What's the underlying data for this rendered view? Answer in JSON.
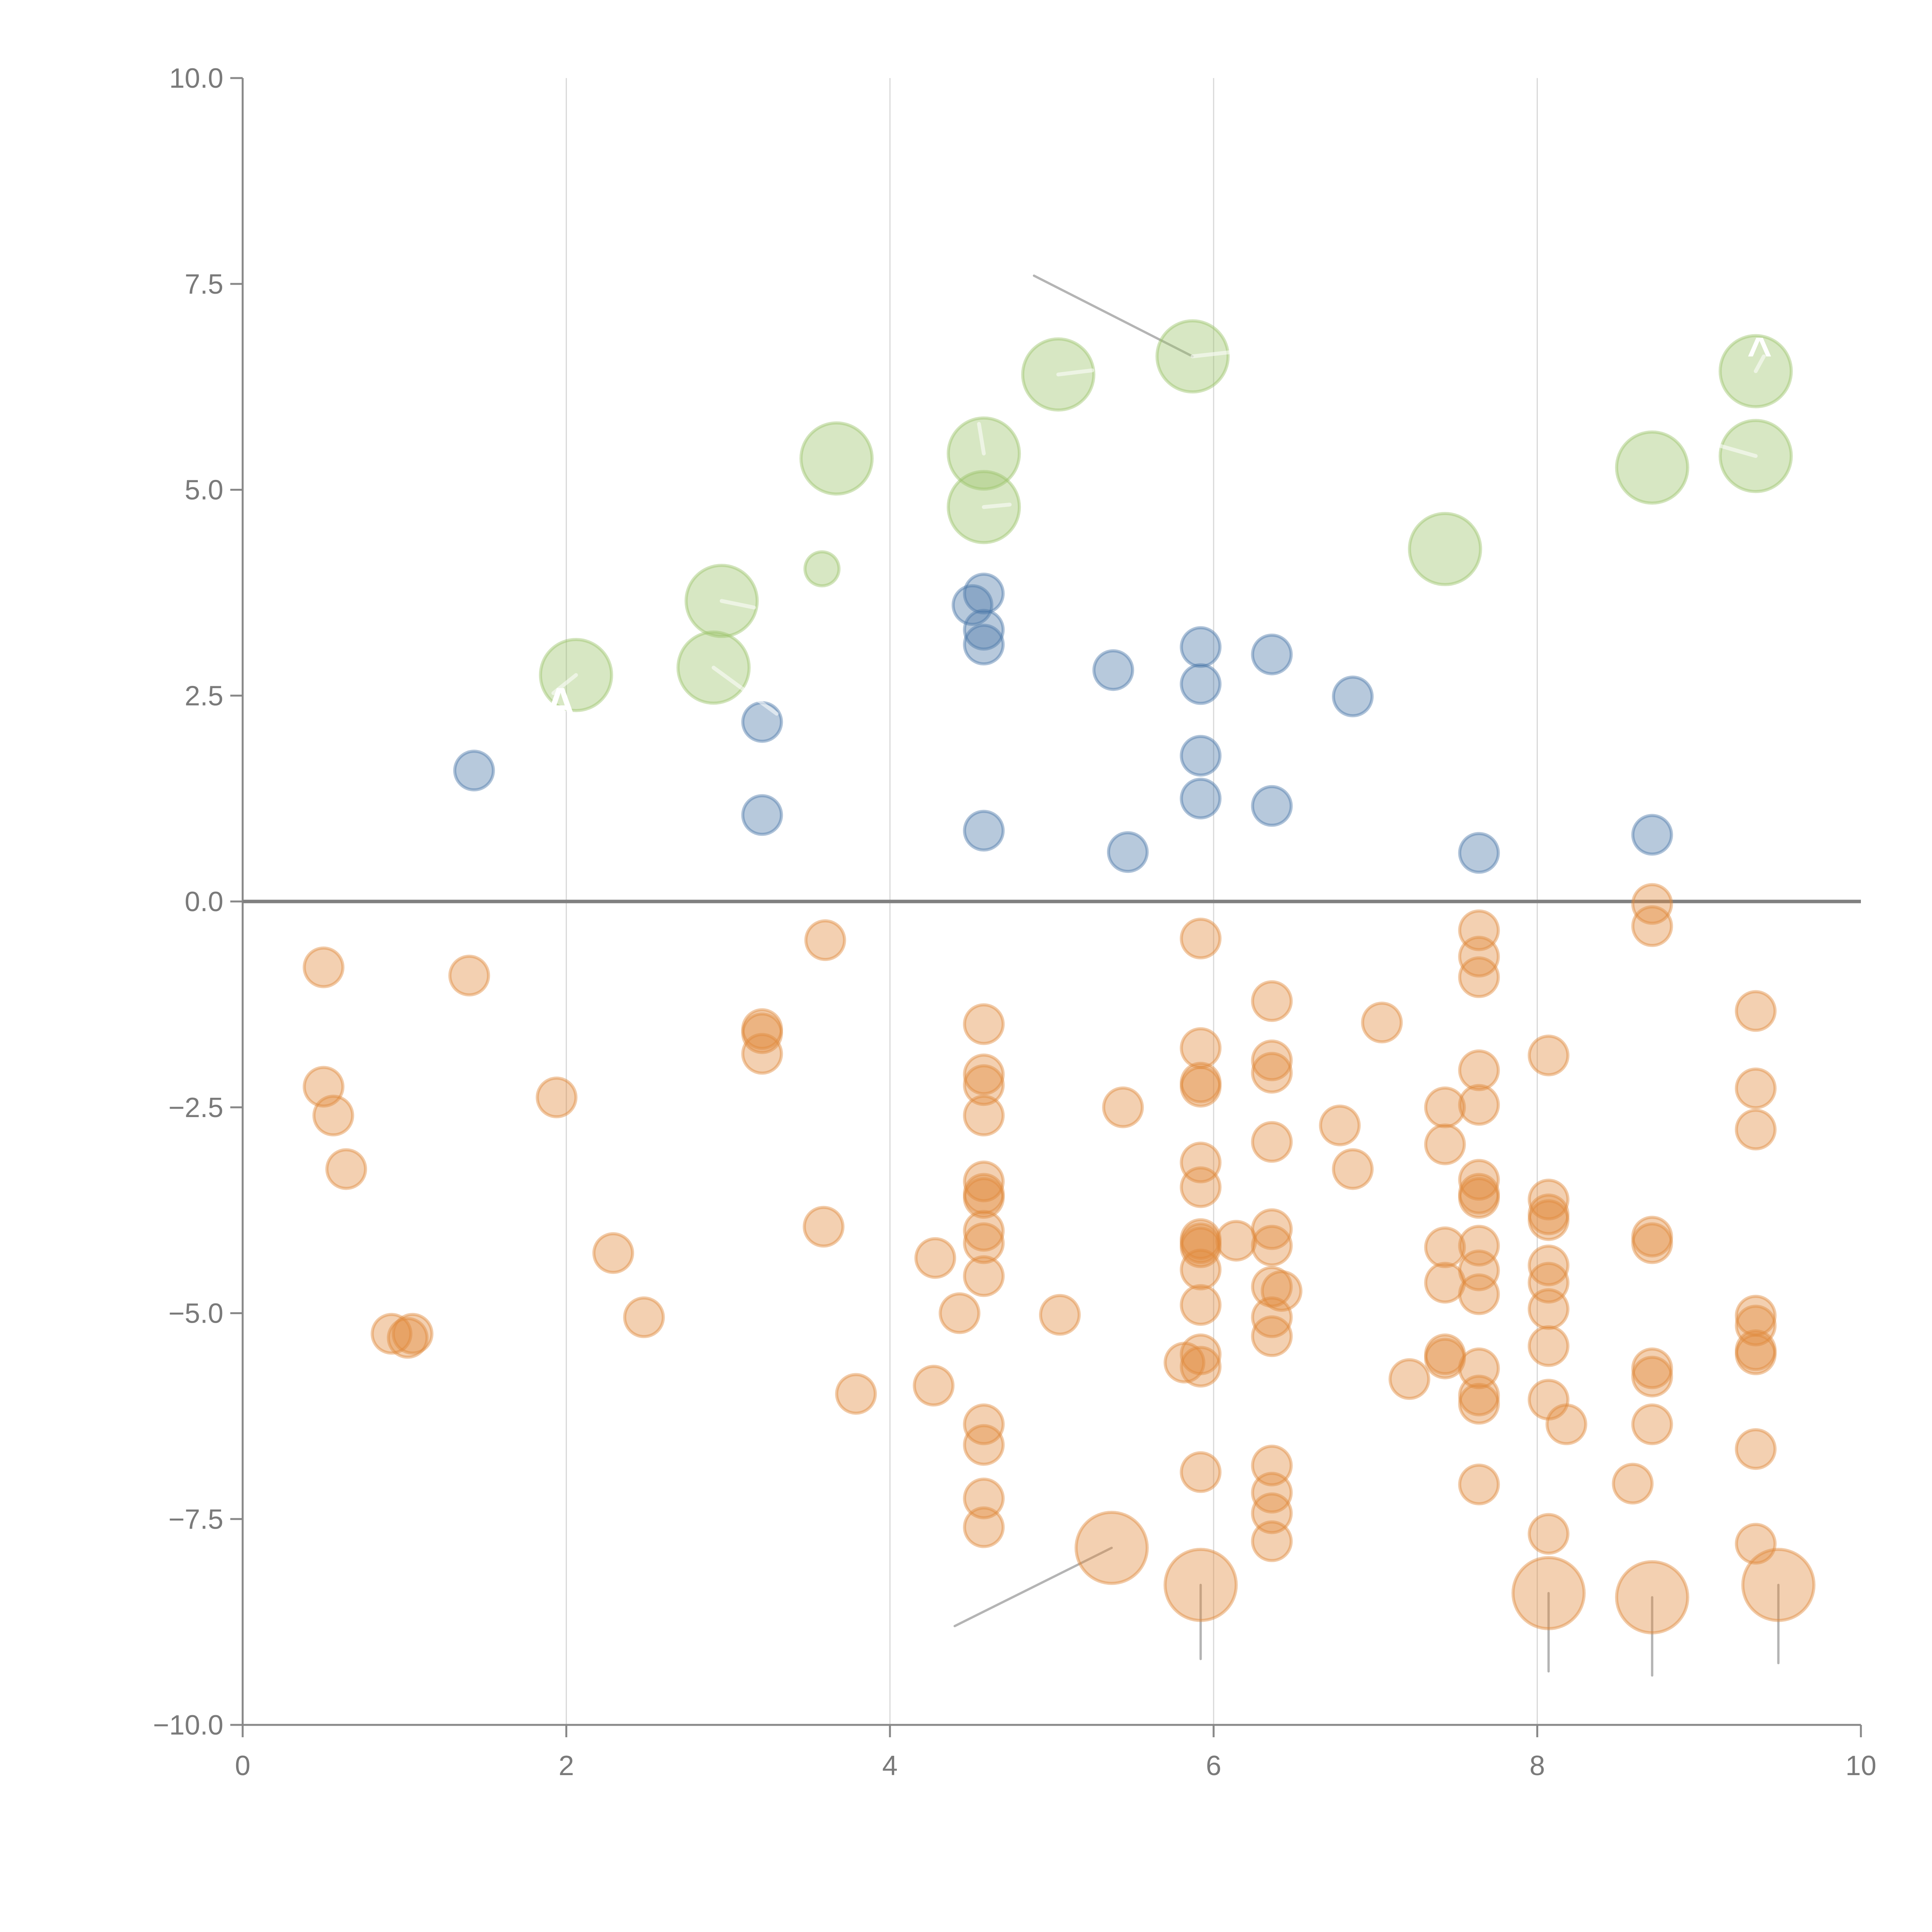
{
  "chart_data": {
    "type": "scatter",
    "title": "",
    "xlabel": "",
    "ylabel": "",
    "xlim": [
      0,
      10
    ],
    "ylim": [
      -10,
      10
    ],
    "x_ticks": [
      "0",
      "2",
      "4",
      "6",
      "8",
      "10"
    ],
    "x_tick_values": [
      0,
      2,
      4,
      6,
      8,
      10
    ],
    "y_ticks": [
      "10.0",
      "7.5",
      "5.0",
      "2.5",
      "0.0",
      "−2.5",
      "−5.0",
      "−7.5",
      "−10.0"
    ],
    "y_tick_values": [
      10,
      7.5,
      5,
      2.5,
      0,
      -2.5,
      -5,
      -7.5,
      -10
    ],
    "grid": "vertical at x ticks",
    "reference_line": {
      "y": 0
    },
    "legend": "none",
    "series": [
      {
        "name": "blue",
        "color": "#4c78a8",
        "size": "small",
        "points": [
          [
            1.43,
            1.59
          ],
          [
            3.21,
            2.18
          ],
          [
            3.21,
            1.05
          ],
          [
            4.51,
            3.6
          ],
          [
            4.58,
            3.74
          ],
          [
            4.58,
            3.3
          ],
          [
            4.58,
            3.12
          ],
          [
            4.58,
            0.86
          ],
          [
            5.38,
            2.81
          ],
          [
            5.47,
            0.6
          ],
          [
            5.92,
            3.09
          ],
          [
            5.92,
            2.64
          ],
          [
            5.92,
            1.77
          ],
          [
            5.92,
            1.25
          ],
          [
            6.36,
            3.0
          ],
          [
            6.36,
            1.16
          ],
          [
            6.86,
            2.49
          ],
          [
            7.64,
            0.59
          ],
          [
            8.71,
            0.81
          ]
        ]
      },
      {
        "name": "green",
        "color": "#9cc36a",
        "size": "large",
        "points": [
          [
            2.06,
            2.75,
            "L"
          ],
          [
            2.91,
            2.84,
            "L"
          ],
          [
            2.96,
            3.65,
            "L"
          ],
          [
            3.58,
            4.04,
            "S"
          ],
          [
            3.67,
            5.38,
            "L"
          ],
          [
            4.58,
            5.44,
            "L"
          ],
          [
            4.58,
            4.79,
            "L"
          ],
          [
            5.04,
            6.4,
            "L"
          ],
          [
            5.87,
            6.62,
            "L"
          ],
          [
            7.43,
            4.28,
            "L"
          ],
          [
            8.71,
            5.27,
            "L"
          ],
          [
            9.35,
            6.44,
            "L"
          ],
          [
            9.35,
            5.41,
            "L"
          ]
        ]
      },
      {
        "name": "orange",
        "color": "#e08a3c",
        "size": "small",
        "points": [
          [
            0.5,
            -0.8
          ],
          [
            0.5,
            -2.25
          ],
          [
            0.56,
            -2.6
          ],
          [
            0.64,
            -3.25
          ],
          [
            0.92,
            -5.25
          ],
          [
            1.02,
            -5.3
          ],
          [
            1.05,
            -5.25
          ],
          [
            1.4,
            -0.9
          ],
          [
            1.94,
            -2.38
          ],
          [
            2.29,
            -4.27
          ],
          [
            2.48,
            -5.05
          ],
          [
            3.21,
            -1.55
          ],
          [
            3.21,
            -1.6
          ],
          [
            3.21,
            -1.85
          ],
          [
            3.6,
            -0.47
          ],
          [
            3.59,
            -3.95
          ],
          [
            3.79,
            -5.98
          ],
          [
            4.28,
            -4.33
          ],
          [
            4.27,
            -5.88
          ],
          [
            4.43,
            -5.0
          ],
          [
            4.58,
            -1.49
          ],
          [
            4.58,
            -2.1
          ],
          [
            4.58,
            -2.23
          ],
          [
            4.58,
            -2.6
          ],
          [
            4.58,
            -3.4
          ],
          [
            4.58,
            -3.55
          ],
          [
            4.58,
            -3.6
          ],
          [
            4.58,
            -4.0
          ],
          [
            4.58,
            -4.15
          ],
          [
            4.58,
            -4.55
          ],
          [
            4.58,
            -6.35
          ],
          [
            4.58,
            -6.6
          ],
          [
            4.58,
            -7.25
          ],
          [
            4.58,
            -7.6
          ],
          [
            5.05,
            -5.02
          ],
          [
            5.44,
            -2.5
          ],
          [
            5.82,
            -5.6
          ],
          [
            5.92,
            -0.45
          ],
          [
            5.92,
            -1.78
          ],
          [
            5.92,
            -2.2
          ],
          [
            5.92,
            -2.25
          ],
          [
            5.92,
            -3.17
          ],
          [
            5.92,
            -3.47
          ],
          [
            5.92,
            -4.1
          ],
          [
            5.92,
            -4.15
          ],
          [
            5.92,
            -4.2
          ],
          [
            5.92,
            -4.47
          ],
          [
            5.92,
            -4.9
          ],
          [
            5.92,
            -5.5
          ],
          [
            5.92,
            -5.65
          ],
          [
            5.92,
            -6.93
          ],
          [
            6.14,
            -4.12
          ],
          [
            6.36,
            -1.21
          ],
          [
            6.36,
            -1.93
          ],
          [
            6.36,
            -2.08
          ],
          [
            6.36,
            -2.92
          ],
          [
            6.36,
            -3.98
          ],
          [
            6.36,
            -4.18
          ],
          [
            6.36,
            -4.68
          ],
          [
            6.36,
            -5.05
          ],
          [
            6.36,
            -5.28
          ],
          [
            6.36,
            -6.85
          ],
          [
            6.36,
            -7.18
          ],
          [
            6.36,
            -7.43
          ],
          [
            6.36,
            -7.77
          ],
          [
            6.42,
            -4.73
          ],
          [
            6.78,
            -2.72
          ],
          [
            6.86,
            -3.25
          ],
          [
            7.04,
            -1.47
          ],
          [
            7.21,
            -5.8
          ],
          [
            7.43,
            -2.5
          ],
          [
            7.43,
            -2.95
          ],
          [
            7.43,
            -4.2
          ],
          [
            7.43,
            -4.63
          ],
          [
            7.43,
            -5.5
          ],
          [
            7.43,
            -5.55
          ],
          [
            7.64,
            -0.35
          ],
          [
            7.64,
            -0.67
          ],
          [
            7.64,
            -0.92
          ],
          [
            7.64,
            -2.05
          ],
          [
            7.64,
            -2.47
          ],
          [
            7.64,
            -3.38
          ],
          [
            7.64,
            -3.55
          ],
          [
            7.64,
            -3.6
          ],
          [
            7.64,
            -4.18
          ],
          [
            7.64,
            -4.48
          ],
          [
            7.64,
            -4.77
          ],
          [
            7.64,
            -5.67
          ],
          [
            7.64,
            -6.0
          ],
          [
            7.64,
            -6.1
          ],
          [
            7.64,
            -7.08
          ],
          [
            8.07,
            -1.87
          ],
          [
            8.07,
            -3.62
          ],
          [
            8.07,
            -3.8
          ],
          [
            8.07,
            -3.87
          ],
          [
            8.07,
            -4.42
          ],
          [
            8.07,
            -4.63
          ],
          [
            8.07,
            -4.95
          ],
          [
            8.07,
            -5.4
          ],
          [
            8.07,
            -6.05
          ],
          [
            8.07,
            -7.68
          ],
          [
            8.18,
            -6.35
          ],
          [
            8.59,
            -7.07
          ],
          [
            8.71,
            -0.03
          ],
          [
            8.71,
            -0.3
          ],
          [
            8.71,
            -4.07
          ],
          [
            8.71,
            -4.15
          ],
          [
            8.71,
            -5.67
          ],
          [
            8.71,
            -5.77
          ],
          [
            8.71,
            -6.35
          ],
          [
            9.35,
            -1.33
          ],
          [
            9.35,
            -2.27
          ],
          [
            9.35,
            -2.77
          ],
          [
            9.35,
            -5.03
          ],
          [
            9.35,
            -5.15
          ],
          [
            9.35,
            -5.45
          ],
          [
            9.35,
            -5.5
          ],
          [
            9.35,
            -6.65
          ],
          [
            9.35,
            -7.8
          ]
        ],
        "large_points": [
          [
            5.37,
            -7.85
          ],
          [
            5.92,
            -8.3
          ],
          [
            8.07,
            -8.4
          ],
          [
            8.71,
            -8.45
          ],
          [
            9.49,
            -8.3
          ]
        ]
      }
    ],
    "annotations": [
      {
        "label": "A",
        "x": 2.06,
        "y": 2.75,
        "text_color": "#ffffff"
      },
      {
        "label": "^",
        "x": 9.35,
        "y": 6.44,
        "text_color": "#ffffff"
      }
    ],
    "leader_lines": [
      {
        "from": [
          4.89,
          7.6
        ],
        "to": [
          5.87,
          6.62
        ],
        "color": "#b4b4b4"
      },
      {
        "from": [
          4.4,
          -8.8
        ],
        "to": [
          5.37,
          -7.85
        ],
        "color": "#b4b4b4"
      },
      {
        "from": [
          5.92,
          -8.3
        ],
        "to": [
          5.92,
          -9.2
        ],
        "color": "#b4b4b4"
      },
      {
        "from": [
          8.07,
          -8.4
        ],
        "to": [
          8.07,
          -9.35
        ],
        "color": "#b4b4b4"
      },
      {
        "from": [
          8.71,
          -8.45
        ],
        "to": [
          8.71,
          -9.4
        ],
        "color": "#b4b4b4"
      },
      {
        "from": [
          9.49,
          -8.3
        ],
        "to": [
          9.49,
          -9.25
        ],
        "color": "#b4b4b4"
      }
    ],
    "white_leader_lines": [
      {
        "from": [
          2.06,
          2.75
        ],
        "to": [
          1.92,
          2.53
        ]
      },
      {
        "from": [
          2.91,
          2.84
        ],
        "to": [
          3.3,
          2.28
        ]
      },
      {
        "from": [
          2.96,
          3.65
        ],
        "to": [
          3.16,
          3.57
        ]
      },
      {
        "from": [
          4.58,
          5.44
        ],
        "to": [
          4.55,
          5.8
        ]
      },
      {
        "from": [
          4.58,
          4.79
        ],
        "to": [
          4.74,
          4.82
        ]
      },
      {
        "from": [
          5.04,
          6.4
        ],
        "to": [
          5.25,
          6.45
        ]
      },
      {
        "from": [
          5.87,
          6.62
        ],
        "to": [
          6.1,
          6.67
        ]
      },
      {
        "from": [
          9.35,
          5.41
        ],
        "to": [
          9.1,
          5.55
        ]
      },
      {
        "from": [
          9.35,
          6.44
        ],
        "to": [
          9.4,
          6.62
        ]
      }
    ]
  }
}
